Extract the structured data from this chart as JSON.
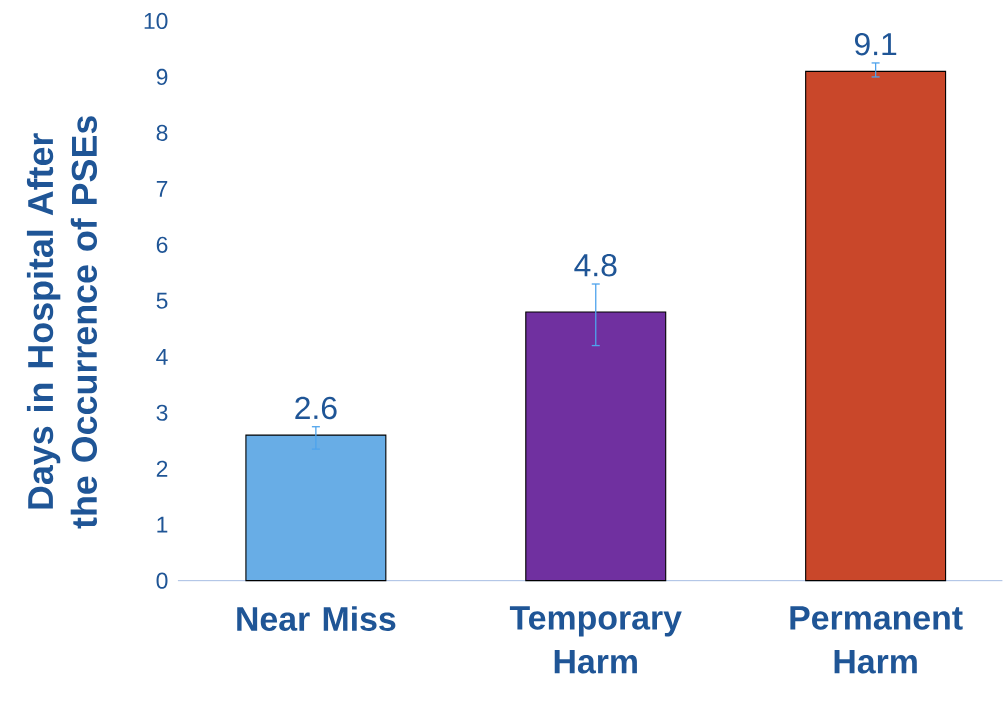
{
  "chart_data": {
    "type": "bar",
    "ylabel": "Days in Hospital After the Occurrence of PSEs",
    "categories": [
      "Near Miss",
      "Temporary Harm",
      "Permanent Harm"
    ],
    "values": [
      2.6,
      4.8,
      9.1
    ],
    "colors": [
      "#68ade6",
      "#7030a0",
      "#c9472a"
    ],
    "errors": [
      [
        2.35,
        2.75
      ],
      [
        4.2,
        5.3
      ],
      [
        9.0,
        9.25
      ]
    ],
    "ylim": [
      0,
      10
    ],
    "yticks": [
      0,
      1,
      2,
      3,
      4,
      5,
      6,
      7,
      8,
      9,
      10
    ],
    "data_labels": true,
    "grid": false
  }
}
